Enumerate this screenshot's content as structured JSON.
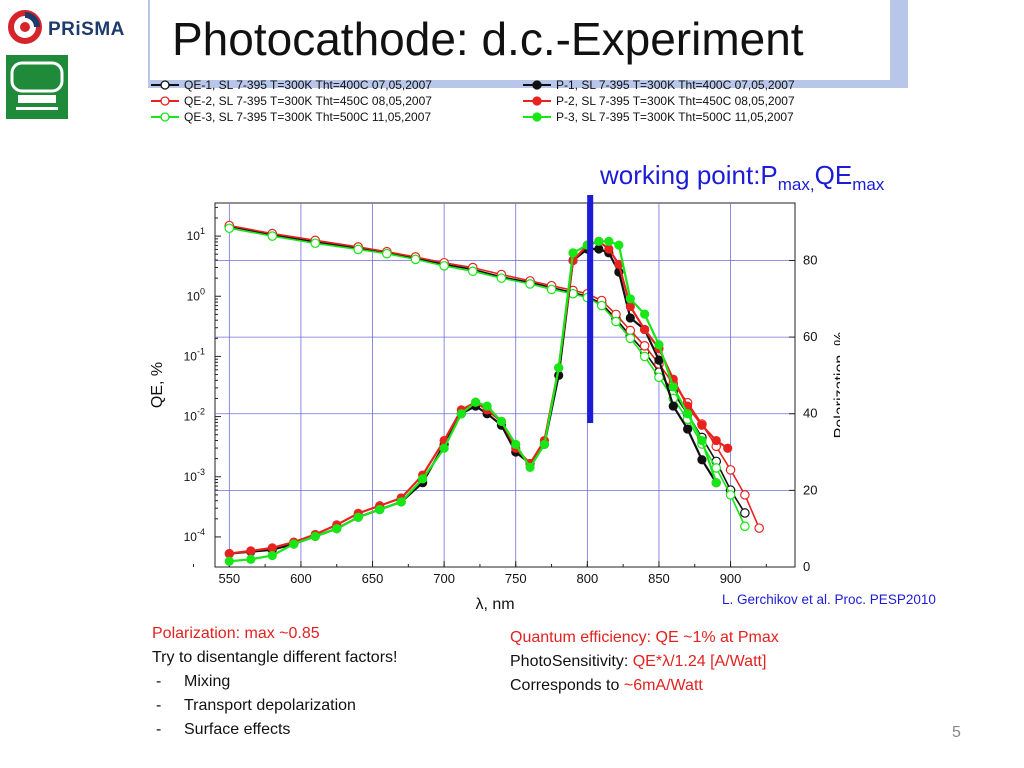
{
  "header": {
    "logo_text": "PRiSMA",
    "title": "Photocathode: d.c.-Experiment"
  },
  "annotation": {
    "working_point_prefix": "working point:P",
    "sub1": "max,",
    "mid": "QE",
    "sub2": "max"
  },
  "citation": "L. Gerchikov et al.  Proc. PESP2010",
  "notes_left": {
    "line1": "Polarization: max ~0.85",
    "line2": "Try to disentangle different factors!",
    "bullets": [
      "Mixing",
      "Transport depolarization",
      "Surface effects"
    ],
    "bullet_marker": "-"
  },
  "notes_right": {
    "line1": "Quantum efficiency: QE ~1% at Pmax",
    "line2_prefix": "PhotoSensitivity: ",
    "line2_value": "QE*λ/1.24 [A/Watt]",
    "line3_prefix": "Corresponds to ",
    "line3_value": "~6mA/Watt"
  },
  "page_number": "5",
  "colors": {
    "black": "#111111",
    "red": "#e8231f",
    "green": "#17e617",
    "blue": "#1c1cd6",
    "grid": "#6e6edc",
    "title_band": "#b8c6ea"
  },
  "chart_data": {
    "type": "scatter",
    "xlabel": "λ, nm",
    "ylabel_left": "QE, %",
    "ylabel_right": "Polarization,  %",
    "x_ticks": [
      550,
      600,
      650,
      700,
      750,
      800,
      850,
      900
    ],
    "xlim": [
      540,
      945
    ],
    "y_left_scale": "log",
    "y_left_ticks": [
      "10^1",
      "10^0",
      "10^-1",
      "10^-2",
      "10^-3",
      "10^-4"
    ],
    "y_left_exps": [
      1,
      0,
      -1,
      -2,
      -3,
      -4
    ],
    "y_left_lim_exp": [
      -4.5,
      1.55
    ],
    "y_right_ticks": [
      0,
      20,
      40,
      60,
      80
    ],
    "y_right_lim": [
      0,
      95
    ],
    "working_point_nm": 802,
    "legend_qe": [
      {
        "name": "QE-1, SL 7-395 T=300K Tht=400C 07,05,2007",
        "color": "#111111"
      },
      {
        "name": "QE-2, SL 7-395 T=300K Tht=450C 08,05,2007",
        "color": "#e8231f"
      },
      {
        "name": "QE-3, SL 7-395 T=300K Tht=500C 11,05,2007",
        "color": "#17e617"
      }
    ],
    "legend_p": [
      {
        "name": "P-1, SL 7-395 T=300K Tht=400C 07,05,2007",
        "color": "#111111"
      },
      {
        "name": "P-2, SL 7-395 T=300K Tht=450C 08,05,2007",
        "color": "#e8231f"
      },
      {
        "name": "P-3, SL 7-395 T=300K Tht=500C 11,05,2007",
        "color": "#17e617"
      }
    ],
    "series": [
      {
        "name": "QE-1",
        "kind": "qe",
        "color": "#111111",
        "x": [
          550,
          580,
          610,
          640,
          660,
          680,
          700,
          720,
          740,
          760,
          775,
          790,
          800,
          810,
          820,
          830,
          840,
          850,
          860,
          870,
          880,
          890,
          900,
          910
        ],
        "y": [
          14.5,
          10.5,
          8,
          6.3,
          5.3,
          4.3,
          3.4,
          2.8,
          2.1,
          1.7,
          1.4,
          1.15,
          1.0,
          0.75,
          0.42,
          0.22,
          0.12,
          0.055,
          0.025,
          0.011,
          0.0045,
          0.0018,
          0.0006,
          0.00025
        ]
      },
      {
        "name": "QE-2",
        "kind": "qe",
        "color": "#e8231f",
        "x": [
          550,
          580,
          610,
          640,
          660,
          680,
          700,
          720,
          740,
          760,
          775,
          790,
          800,
          810,
          820,
          830,
          840,
          850,
          860,
          870,
          880,
          890,
          900,
          910,
          920
        ],
        "y": [
          15,
          11,
          8.5,
          6.6,
          5.5,
          4.5,
          3.6,
          3.0,
          2.3,
          1.8,
          1.5,
          1.25,
          1.1,
          0.85,
          0.5,
          0.27,
          0.15,
          0.075,
          0.035,
          0.017,
          0.0075,
          0.0032,
          0.0013,
          0.0005,
          0.00014
        ]
      },
      {
        "name": "QE-3",
        "kind": "qe",
        "color": "#17e617",
        "x": [
          550,
          580,
          610,
          640,
          660,
          680,
          700,
          720,
          740,
          760,
          775,
          790,
          800,
          810,
          820,
          830,
          840,
          850,
          860,
          870,
          880,
          890,
          900,
          910
        ],
        "y": [
          13.5,
          10,
          7.6,
          6,
          5.1,
          4.1,
          3.2,
          2.6,
          2.0,
          1.6,
          1.3,
          1.1,
          0.95,
          0.7,
          0.38,
          0.2,
          0.1,
          0.045,
          0.02,
          0.009,
          0.0035,
          0.0014,
          0.0005,
          0.00015
        ]
      },
      {
        "name": "P-1",
        "kind": "p",
        "color": "#111111",
        "x": [
          550,
          565,
          580,
          595,
          610,
          625,
          640,
          655,
          670,
          685,
          700,
          712,
          722,
          730,
          740,
          750,
          760,
          770,
          780,
          790,
          800,
          808,
          815,
          822,
          830,
          840,
          850,
          860,
          870,
          880,
          890
        ],
        "y": [
          3.5,
          4,
          4.5,
          6,
          8,
          10,
          13,
          15,
          17,
          22,
          32,
          40,
          42,
          40,
          37,
          30,
          27,
          32,
          50,
          80,
          83,
          83,
          82,
          77,
          65,
          62,
          54,
          42,
          36,
          28,
          22
        ]
      },
      {
        "name": "P-2",
        "kind": "p",
        "color": "#e8231f",
        "x": [
          550,
          565,
          580,
          595,
          610,
          625,
          640,
          655,
          670,
          685,
          700,
          712,
          722,
          730,
          740,
          750,
          760,
          770,
          780,
          790,
          800,
          808,
          815,
          822,
          830,
          840,
          850,
          860,
          870,
          880,
          890,
          898
        ],
        "y": [
          3.5,
          4.2,
          5,
          6.5,
          8.5,
          11,
          14,
          16,
          18,
          24,
          33,
          41,
          43,
          41,
          38,
          31,
          27,
          33,
          52,
          80,
          84,
          85,
          83,
          79,
          68,
          62,
          57,
          49,
          42,
          37,
          33,
          31
        ]
      },
      {
        "name": "P-3",
        "kind": "p",
        "color": "#17e617",
        "x": [
          550,
          565,
          580,
          595,
          610,
          625,
          640,
          655,
          670,
          685,
          700,
          712,
          722,
          730,
          740,
          750,
          760,
          770,
          780,
          790,
          800,
          808,
          815,
          822,
          830,
          840,
          850,
          860,
          870,
          880,
          890
        ],
        "y": [
          1.5,
          2,
          3,
          6,
          8,
          10,
          13,
          15,
          17,
          23,
          31,
          40,
          43,
          42,
          38,
          32,
          26,
          32,
          52,
          82,
          84,
          85,
          85,
          84,
          70,
          66,
          58,
          47,
          40,
          33,
          22
        ]
      }
    ]
  }
}
